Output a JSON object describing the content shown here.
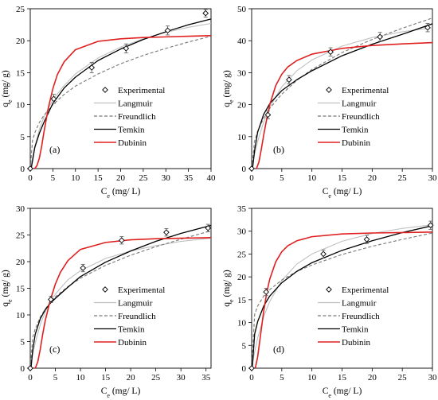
{
  "chart_data": [
    {
      "type": "line",
      "panel_label": "(a)",
      "xlabel": "Ce (mg/ L)",
      "ylabel": "qe (mg/ g)",
      "xlim": [
        0,
        40
      ],
      "ylim": [
        0,
        25
      ],
      "xticks": [
        0,
        5,
        10,
        15,
        20,
        25,
        30,
        35,
        40
      ],
      "yticks": [
        0,
        5,
        10,
        15,
        20,
        25
      ],
      "legend_position": "right",
      "experimental": {
        "name": "Experimental",
        "x": [
          0,
          5.2,
          13.6,
          21.2,
          30.4,
          38.8
        ],
        "y": [
          0,
          10.9,
          15.8,
          18.8,
          21.6,
          24.3
        ],
        "err": [
          0,
          0.7,
          0.8,
          0.7,
          0.7,
          0.6
        ]
      },
      "series": [
        {
          "name": "Langmuir",
          "color": "#c0c0c0",
          "dash": "solid",
          "x": [
            0,
            0.5,
            1,
            2,
            3,
            5,
            7.5,
            10,
            15,
            20,
            25,
            30,
            35,
            40
          ],
          "y": [
            0,
            1.7,
            3.4,
            6.1,
            8.0,
            10.8,
            13.0,
            14.8,
            17.3,
            19.0,
            20.3,
            21.3,
            22.1,
            22.7
          ]
        },
        {
          "name": "Freundlich",
          "color": "#777777",
          "dash": "dashed",
          "x": [
            0,
            0.5,
            1,
            2,
            3,
            5,
            7.5,
            10,
            15,
            20,
            25,
            30,
            35,
            40
          ],
          "y": [
            0,
            4.4,
            5.6,
            7.2,
            8.3,
            10.0,
            11.6,
            12.9,
            14.8,
            16.4,
            17.7,
            18.8,
            19.8,
            20.7
          ]
        },
        {
          "name": "Temkin",
          "color": "#000000",
          "dash": "solid",
          "x": [
            0.2,
            0.5,
            1,
            2,
            3,
            5,
            7.5,
            10,
            15,
            20,
            25,
            30,
            35,
            40
          ],
          "y": [
            0,
            1.2,
            3.3,
            5.5,
            7.2,
            10.2,
            12.6,
            14.3,
            16.9,
            18.7,
            20.2,
            21.4,
            22.5,
            23.4
          ]
        },
        {
          "name": "Dubinin",
          "color": "#e02020",
          "dash": "solid",
          "x": [
            0,
            1,
            1.5,
            2,
            2.5,
            3,
            4,
            5,
            6,
            7.5,
            10,
            15,
            20,
            25,
            30,
            35,
            40
          ],
          "y": [
            0,
            0,
            0.5,
            1.6,
            3.4,
            5.6,
            9.5,
            12.5,
            14.7,
            16.7,
            18.6,
            19.9,
            20.3,
            20.5,
            20.6,
            20.7,
            20.8
          ]
        }
      ]
    },
    {
      "type": "line",
      "panel_label": "(b)",
      "xlabel": "Ce (mg/ L)",
      "ylabel": "qe (mg/ g)",
      "xlim": [
        0,
        30
      ],
      "ylim": [
        0,
        50
      ],
      "xticks": [
        0,
        5,
        10,
        15,
        20,
        25,
        30
      ],
      "yticks": [
        0,
        10,
        20,
        30,
        40,
        50
      ],
      "legend_position": "right",
      "experimental": {
        "name": "Experimental",
        "x": [
          0,
          2.7,
          6.2,
          13.1,
          21.3,
          29.2
        ],
        "y": [
          0,
          16.8,
          27.8,
          36.5,
          41.2,
          44.1
        ],
        "err": [
          0,
          1.2,
          1.3,
          1.3,
          1.4,
          1.3
        ]
      },
      "series": [
        {
          "name": "Langmuir",
          "color": "#c0c0c0",
          "dash": "solid",
          "x": [
            0,
            0.5,
            1,
            2,
            3,
            5,
            7.5,
            10,
            15,
            20,
            25,
            30
          ],
          "y": [
            0,
            4.6,
            8.5,
            14.6,
            19.2,
            25.6,
            30.6,
            34.0,
            38.3,
            41.0,
            42.8,
            44.1
          ]
        },
        {
          "name": "Freundlich",
          "color": "#777777",
          "dash": "dashed",
          "x": [
            0,
            0.5,
            1,
            2,
            3,
            5,
            7.5,
            10,
            15,
            20,
            25,
            30
          ],
          "y": [
            0,
            8.6,
            11.7,
            15.8,
            18.8,
            23.3,
            27.6,
            31.0,
            36.3,
            40.4,
            43.9,
            47.1
          ]
        },
        {
          "name": "Temkin",
          "color": "#000000",
          "dash": "solid",
          "x": [
            0.15,
            0.5,
            1,
            2,
            3,
            5,
            7.5,
            10,
            15,
            20,
            25,
            30
          ],
          "y": [
            0,
            5.8,
            11.4,
            17.0,
            20.3,
            24.4,
            27.8,
            30.6,
            35.3,
            38.9,
            42.0,
            45.3
          ]
        },
        {
          "name": "Dubinin",
          "color": "#e02020",
          "dash": "solid",
          "x": [
            0,
            0.8,
            1.2,
            1.6,
            2,
            2.5,
            3,
            4,
            5,
            6,
            7.5,
            10,
            15,
            20,
            25,
            30
          ],
          "y": [
            0,
            0,
            2.0,
            6.0,
            10.5,
            15.5,
            20.0,
            26.0,
            29.5,
            31.8,
            33.8,
            35.8,
            37.6,
            38.5,
            39.0,
            39.4
          ]
        }
      ]
    },
    {
      "type": "line",
      "panel_label": "(c)",
      "xlabel": "Ce (mg/ L)",
      "ylabel": "qe (mg/ g)",
      "xlim": [
        0,
        36
      ],
      "ylim": [
        0,
        30
      ],
      "xticks": [
        0,
        5,
        10,
        15,
        20,
        25,
        30,
        35
      ],
      "yticks": [
        0,
        5,
        10,
        15,
        20,
        25,
        30
      ],
      "legend_position": "right",
      "experimental": {
        "name": "Experimental",
        "x": [
          0,
          4.1,
          10.5,
          18.2,
          27.1,
          35.4
        ],
        "y": [
          0,
          12.9,
          18.8,
          24.0,
          25.5,
          26.3
        ],
        "err": [
          0,
          0.6,
          0.7,
          0.7,
          0.7,
          0.7
        ]
      },
      "series": [
        {
          "name": "Langmuir",
          "color": "#c0c0c0",
          "dash": "solid",
          "x": [
            0,
            0.5,
            1,
            2,
            3,
            4,
            5,
            7.5,
            10,
            15,
            20,
            25,
            30,
            36
          ],
          "y": [
            0,
            2.6,
            4.8,
            8.2,
            10.6,
            12.5,
            13.9,
            16.6,
            18.3,
            20.6,
            22.0,
            23.0,
            23.8,
            24.4
          ]
        },
        {
          "name": "Freundlich",
          "color": "#777777",
          "dash": "dashed",
          "x": [
            0,
            0.5,
            1,
            2,
            3,
            4,
            5,
            7.5,
            10,
            15,
            20,
            25,
            30,
            36
          ],
          "y": [
            0,
            5.8,
            7.4,
            9.6,
            11.1,
            12.4,
            13.4,
            15.3,
            16.9,
            19.3,
            21.2,
            22.8,
            24.2,
            25.8
          ]
        },
        {
          "name": "Temkin",
          "color": "#000000",
          "dash": "solid",
          "x": [
            0.15,
            0.5,
            1,
            2,
            3,
            4,
            5,
            7.5,
            10,
            15,
            20,
            25,
            30,
            36
          ],
          "y": [
            0,
            3.5,
            6.4,
            9.3,
            11.0,
            12.2,
            13.1,
            15.2,
            17.2,
            19.9,
            22.0,
            23.8,
            25.3,
            26.8
          ]
        },
        {
          "name": "Dubinin",
          "color": "#e02020",
          "dash": "solid",
          "x": [
            0,
            1,
            1.5,
            2,
            2.5,
            3,
            4,
            5,
            6,
            7.5,
            10,
            15,
            20,
            25,
            30,
            36
          ],
          "y": [
            0,
            0,
            1.2,
            3.6,
            6.5,
            9.0,
            12.8,
            15.8,
            18.0,
            20.2,
            22.3,
            23.6,
            24.1,
            24.3,
            24.4,
            24.5
          ]
        }
      ]
    },
    {
      "type": "line",
      "panel_label": "(d)",
      "xlabel": "Ce (mg/ L)",
      "ylabel": "qe (mg/ g)",
      "xlim": [
        0,
        30
      ],
      "ylim": [
        0,
        35
      ],
      "xticks": [
        0,
        5,
        10,
        15,
        20,
        25,
        30
      ],
      "yticks": [
        0,
        5,
        10,
        15,
        20,
        25,
        30,
        35
      ],
      "legend_position": "right",
      "experimental": {
        "name": "Experimental",
        "x": [
          0,
          2.4,
          11.9,
          19.1,
          29.7
        ],
        "y": [
          0,
          16.7,
          25.0,
          28.2,
          31.3
        ],
        "err": [
          0,
          0.8,
          0.9,
          0.9,
          0.9
        ]
      },
      "series": [
        {
          "name": "Langmuir",
          "color": "#c0c0c0",
          "dash": "solid",
          "x": [
            0,
            0.5,
            1,
            2,
            3,
            5,
            7.5,
            10,
            15,
            20,
            25,
            30
          ],
          "y": [
            0,
            3.6,
            6.6,
            11.3,
            14.6,
            19.2,
            22.8,
            25.0,
            27.8,
            29.5,
            30.6,
            31.4
          ]
        },
        {
          "name": "Freundlich",
          "color": "#777777",
          "dash": "dashed",
          "x": [
            0,
            0.5,
            1,
            2,
            3,
            5,
            7.5,
            10,
            15,
            20,
            25,
            30
          ],
          "y": [
            0,
            11.8,
            13.6,
            15.8,
            17.2,
            19.3,
            21.2,
            22.6,
            24.9,
            26.7,
            28.2,
            29.6
          ]
        },
        {
          "name": "Temkin",
          "color": "#000000",
          "dash": "solid",
          "x": [
            0.1,
            0.5,
            1,
            2,
            3,
            5,
            7.5,
            10,
            15,
            20,
            25,
            30
          ],
          "y": [
            0,
            7.5,
            10.2,
            13.6,
            15.8,
            18.7,
            21.2,
            23.1,
            25.8,
            27.9,
            29.7,
            31.2
          ]
        },
        {
          "name": "Dubinin",
          "color": "#e02020",
          "dash": "solid",
          "x": [
            0,
            0.6,
            1,
            1.5,
            2,
            2.5,
            3,
            4,
            5,
            6,
            7.5,
            10,
            15,
            20,
            25,
            30
          ],
          "y": [
            0,
            0,
            2.5,
            7.5,
            12.5,
            16.5,
            19.5,
            23.3,
            25.5,
            26.8,
            27.9,
            28.8,
            29.4,
            29.6,
            29.7,
            29.8
          ]
        }
      ]
    }
  ]
}
